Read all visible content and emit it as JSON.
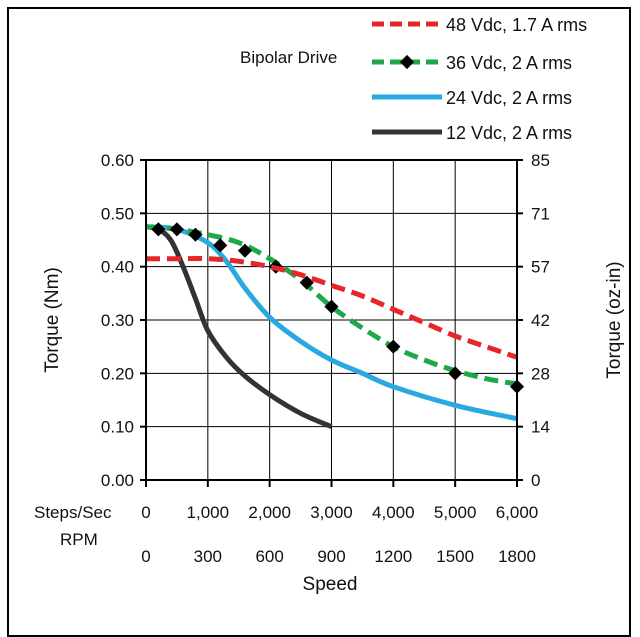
{
  "chart_data": {
    "type": "line",
    "annotation": "Bipolar Drive",
    "xlabel": "Speed",
    "ylabel_left": "Torque (Nm)",
    "ylabel_right": "Torque (oz-in)",
    "x_rows": [
      {
        "label": "Steps/Sec",
        "ticks": [
          "0",
          "1,000",
          "2,000",
          "3,000",
          "4,000",
          "5,000",
          "6,000"
        ]
      },
      {
        "label": "RPM",
        "ticks": [
          "0",
          "300",
          "600",
          "900",
          "1200",
          "1500",
          "1800"
        ]
      }
    ],
    "xlim": [
      0,
      6000
    ],
    "ylim": [
      0,
      0.6
    ],
    "y_ticks_left": [
      "0.00",
      "0.10",
      "0.20",
      "0.30",
      "0.40",
      "0.50",
      "0.60"
    ],
    "y_ticks_right": [
      "0",
      "14",
      "28",
      "42",
      "57",
      "71",
      "85"
    ],
    "grid": true,
    "legend_position": "top-right",
    "series": [
      {
        "name": "48 Vdc, 1.7 A rms",
        "color": "#e8262a",
        "dash": "dashed",
        "x": [
          0,
          500,
          1000,
          1500,
          2000,
          2500,
          3000,
          3500,
          4000,
          4500,
          5000,
          5500,
          6000
        ],
        "y": [
          0.415,
          0.415,
          0.415,
          0.41,
          0.4,
          0.385,
          0.365,
          0.345,
          0.32,
          0.295,
          0.27,
          0.25,
          0.23
        ]
      },
      {
        "name": "36 Vdc, 2 A rms",
        "color": "#1fa84a",
        "dash": "dashed",
        "markers": true,
        "x": [
          0,
          500,
          1000,
          1500,
          2000,
          2500,
          3000,
          3500,
          4000,
          4500,
          5000,
          5500,
          6000
        ],
        "y": [
          0.475,
          0.47,
          0.46,
          0.445,
          0.415,
          0.375,
          0.325,
          0.285,
          0.25,
          0.225,
          0.205,
          0.19,
          0.18
        ],
        "marker_x": [
          200,
          500,
          800,
          1200,
          1600,
          2100,
          2600,
          3000,
          4000,
          5000,
          6000
        ],
        "marker_y": [
          0.47,
          0.47,
          0.46,
          0.44,
          0.43,
          0.4,
          0.37,
          0.325,
          0.25,
          0.2,
          0.175
        ]
      },
      {
        "name": "24 Vdc, 2 A rms",
        "color": "#2aa9e0",
        "dash": "solid",
        "x": [
          0,
          500,
          1000,
          1300,
          1600,
          2000,
          2500,
          3000,
          3500,
          4000,
          5000,
          6000
        ],
        "y": [
          0.475,
          0.47,
          0.445,
          0.41,
          0.36,
          0.305,
          0.26,
          0.225,
          0.2,
          0.175,
          0.14,
          0.115
        ]
      },
      {
        "name": "12 Vdc, 2 A rms",
        "color": "#333333",
        "dash": "solid",
        "x": [
          0,
          200,
          400,
          600,
          800,
          1000,
          1300,
          1600,
          2000,
          2500,
          3000
        ],
        "y": [
          0.475,
          0.47,
          0.45,
          0.4,
          0.34,
          0.28,
          0.23,
          0.195,
          0.16,
          0.125,
          0.1
        ]
      }
    ]
  }
}
